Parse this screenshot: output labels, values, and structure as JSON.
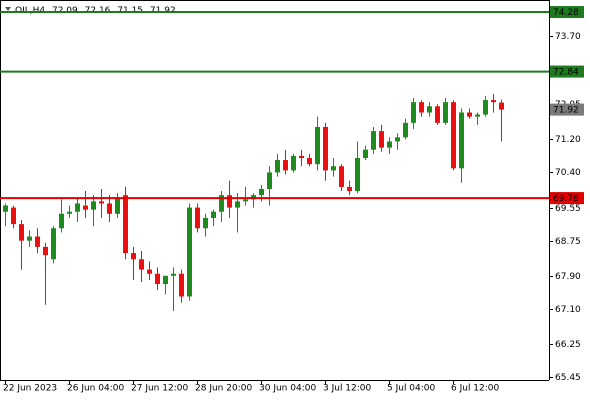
{
  "chart_data": {
    "type": "candlestick",
    "symbol": "OIL,H4",
    "categories": [
      "22 Jun 2023",
      null,
      null,
      null,
      null,
      null,
      null,
      null,
      "26 Jun 04:00",
      null,
      null,
      null,
      null,
      null,
      null,
      null,
      "27 Jun 12:00",
      null,
      null,
      null,
      null,
      null,
      null,
      null,
      "28 Jun 20:00",
      null,
      null,
      null,
      null,
      null,
      null,
      null,
      "30 Jun 04:00",
      null,
      null,
      null,
      null,
      null,
      null,
      null,
      "3 Jul 12:00",
      null,
      null,
      null,
      null,
      null,
      null,
      null,
      "5 Jul 04:00",
      null,
      null,
      null,
      null,
      null,
      null,
      null,
      "6 Jul 12:00",
      null,
      null,
      null,
      null,
      null,
      null
    ],
    "open": [
      69.45,
      69.55,
      69.15,
      68.75,
      68.85,
      68.6,
      68.3,
      69.05,
      69.4,
      69.45,
      69.6,
      69.5,
      69.7,
      69.65,
      69.4,
      69.85,
      68.45,
      68.3,
      68.05,
      67.95,
      67.7,
      67.9,
      67.95,
      67.4,
      69.55,
      69.05,
      69.3,
      69.45,
      69.85,
      69.55,
      69.7,
      69.75,
      69.85,
      70.0,
      70.4,
      70.7,
      70.45,
      70.8,
      70.75,
      70.6,
      71.5,
      70.45,
      70.55,
      70.05,
      69.95,
      70.75,
      70.95,
      71.4,
      71.0,
      71.15,
      71.25,
      71.6,
      72.1,
      71.85,
      72.0,
      71.6,
      72.1,
      70.5,
      71.85,
      71.75,
      71.8,
      72.15,
      72.09
    ],
    "high": [
      69.65,
      69.6,
      69.25,
      69.0,
      69.05,
      68.7,
      69.1,
      69.75,
      69.6,
      69.8,
      69.95,
      69.85,
      70.0,
      69.85,
      69.9,
      70.05,
      68.6,
      68.5,
      68.25,
      68.1,
      67.9,
      68.1,
      68.05,
      69.65,
      69.65,
      69.4,
      69.5,
      69.95,
      70.2,
      69.9,
      70.05,
      69.9,
      70.1,
      70.55,
      70.85,
      70.95,
      70.85,
      70.95,
      70.85,
      71.75,
      71.6,
      70.75,
      70.6,
      70.2,
      71.15,
      71.05,
      71.5,
      71.55,
      71.25,
      71.35,
      71.7,
      72.2,
      72.15,
      72.1,
      72.05,
      72.2,
      72.15,
      71.95,
      71.95,
      71.85,
      72.25,
      72.3,
      72.16
    ],
    "low": [
      69.1,
      69.05,
      68.05,
      68.6,
      68.45,
      67.2,
      68.2,
      68.95,
      69.3,
      69.2,
      69.3,
      69.1,
      69.3,
      69.2,
      69.3,
      68.3,
      67.8,
      67.75,
      67.8,
      67.55,
      67.45,
      67.05,
      67.25,
      67.3,
      68.95,
      68.85,
      69.1,
      69.2,
      69.3,
      68.95,
      69.6,
      69.55,
      69.7,
      69.6,
      70.3,
      70.35,
      70.4,
      70.55,
      70.55,
      70.45,
      70.2,
      70.3,
      69.95,
      69.85,
      69.9,
      70.7,
      70.85,
      70.9,
      70.85,
      70.95,
      71.2,
      71.45,
      71.75,
      71.75,
      71.55,
      71.55,
      70.45,
      70.15,
      71.7,
      71.55,
      71.75,
      71.85,
      71.15
    ],
    "close": [
      69.6,
      69.15,
      68.75,
      68.85,
      68.6,
      68.4,
      69.05,
      69.4,
      69.45,
      69.65,
      69.5,
      69.7,
      69.65,
      69.4,
      69.8,
      68.45,
      68.3,
      68.05,
      67.95,
      67.7,
      67.9,
      67.95,
      67.4,
      69.55,
      69.05,
      69.3,
      69.45,
      69.85,
      69.55,
      69.7,
      69.75,
      69.85,
      70.0,
      70.4,
      70.7,
      70.45,
      70.8,
      70.75,
      70.6,
      71.5,
      70.45,
      70.55,
      70.05,
      69.95,
      70.75,
      70.95,
      71.4,
      71.0,
      71.15,
      71.25,
      71.6,
      72.1,
      71.85,
      72.0,
      71.6,
      72.1,
      70.5,
      71.85,
      71.75,
      71.8,
      72.15,
      72.1,
      71.92
    ],
    "up_color": "#1f8a1f",
    "down_color": "#e81010",
    "last_price_color": "#7a7a7a",
    "levels": [
      {
        "value": 74.28,
        "color": "#1f7a1f"
      },
      {
        "value": 72.84,
        "color": "#1f7a1f"
      },
      {
        "value": 69.78,
        "color": "#e00000"
      }
    ],
    "ylim": [
      65.38,
      74.45
    ],
    "yticks": [
      65.45,
      66.25,
      {
        "value": 67.1,
        "label": "67.10"
      },
      {
        "value": 67.9,
        "label": "67.90"
      },
      68.75,
      69.55,
      {
        "value": 70.4,
        "label": "70.40"
      },
      {
        "value": 71.2,
        "label": "71.20"
      },
      72.05,
      72.85,
      {
        "value": 73.7,
        "label": "73.70"
      }
    ]
  }
}
